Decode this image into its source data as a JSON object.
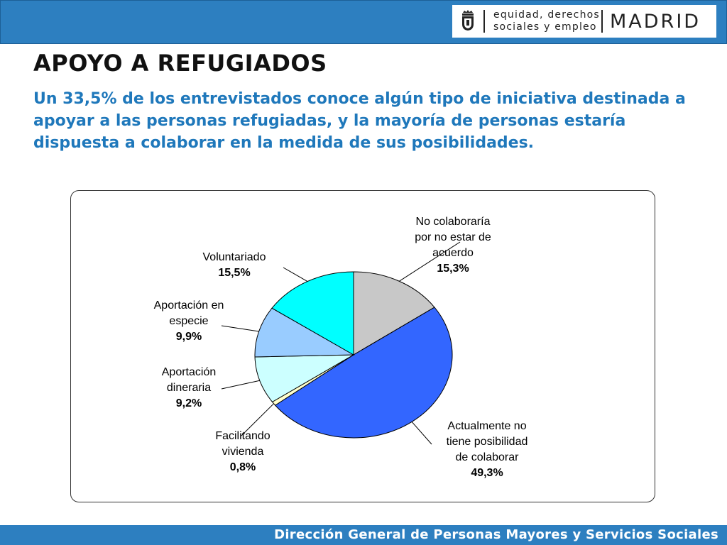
{
  "header": {
    "department_line1": "equidad, derechos",
    "department_line2": "sociales y empleo",
    "city": "MADRID"
  },
  "slide": {
    "title": "APOYO A REFUGIADOS",
    "subtitle": "Un 33,5% de los entrevistados conoce algún tipo de iniciativa destinada a apoyar a las personas refugiadas, y la mayoría de personas estaría dispuesta a colaborar en la medida de sus posibilidades."
  },
  "chart_data": {
    "type": "pie",
    "slices": [
      {
        "label": [
          "No colaboraría",
          "por no estar de",
          "acuerdo"
        ],
        "value": 15.3,
        "value_label": "15,3%",
        "color": "#c8c8c8"
      },
      {
        "label": [
          "Actualmente no",
          "tiene posibilidad",
          "de colaborar"
        ],
        "value": 49.3,
        "value_label": "49,3%",
        "color": "#3366ff"
      },
      {
        "label": [
          "Facilitando",
          "vivienda"
        ],
        "value": 0.8,
        "value_label": "0,8%",
        "color": "#ffffcc"
      },
      {
        "label": [
          "Aportación",
          "dineraria"
        ],
        "value": 9.2,
        "value_label": "9,2%",
        "color": "#ccffff"
      },
      {
        "label": [
          "Aportación en",
          "especie"
        ],
        "value": 9.9,
        "value_label": "9,9%",
        "color": "#99ccff"
      },
      {
        "label": [
          "Voluntariado"
        ],
        "value": 15.5,
        "value_label": "15,5%",
        "color": "#00ffff"
      }
    ]
  },
  "footer": {
    "text": "Dirección General de Personas Mayores y Servicios Sociales"
  }
}
